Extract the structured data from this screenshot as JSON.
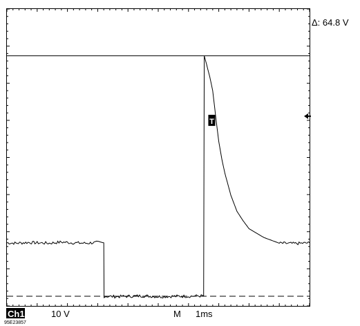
{
  "readout": {
    "delta_prefix": "Δ: ",
    "delta_value": "64.8 V"
  },
  "status": {
    "channel": "Ch1",
    "volts_per_div": "10 V",
    "mode": "M",
    "time_per_div": "1ms"
  },
  "trigger_marker": "T",
  "figure_id": "95E23857",
  "chart_data": {
    "type": "line",
    "title": "",
    "xlabel": "",
    "ylabel": "",
    "x_unit": "ms",
    "y_unit": "V",
    "xlim": [
      0,
      10
    ],
    "ylim": [
      -40,
      40
    ],
    "grid": false,
    "series": [
      {
        "x": [
          0.0,
          0.3,
          0.7,
          1.0,
          1.4,
          1.8,
          2.2,
          2.6,
          3.0,
          3.2,
          3.21,
          3.6,
          4.0,
          4.5,
          5.0,
          5.5,
          6.0,
          6.3,
          6.5,
          6.52,
          6.6,
          6.7,
          6.8,
          6.9,
          7.0,
          7.1,
          7.2,
          7.4,
          7.6,
          7.8,
          8.0,
          8.5,
          9.0,
          9.5,
          10.0
        ],
        "y": [
          -23.0,
          -23.1,
          -22.9,
          -23.0,
          -23.1,
          -22.8,
          -23.0,
          -23.1,
          -22.9,
          -23.0,
          -37.4,
          -37.5,
          -37.4,
          -37.3,
          -37.5,
          -37.4,
          -37.4,
          -37.3,
          -37.3,
          27.4,
          25.0,
          21.8,
          18.0,
          10.9,
          4.3,
          -0.4,
          -4.2,
          -10.2,
          -14.5,
          -17.0,
          -19.2,
          -21.6,
          -23.1,
          -23.2,
          -23.0
        ]
      }
    ],
    "cursors": [
      {
        "style": "solid",
        "y": 27.4
      },
      {
        "style": "dashed",
        "y": -37.4
      }
    ],
    "trigger_x": 6.7,
    "trigger_level": 10.0
  }
}
